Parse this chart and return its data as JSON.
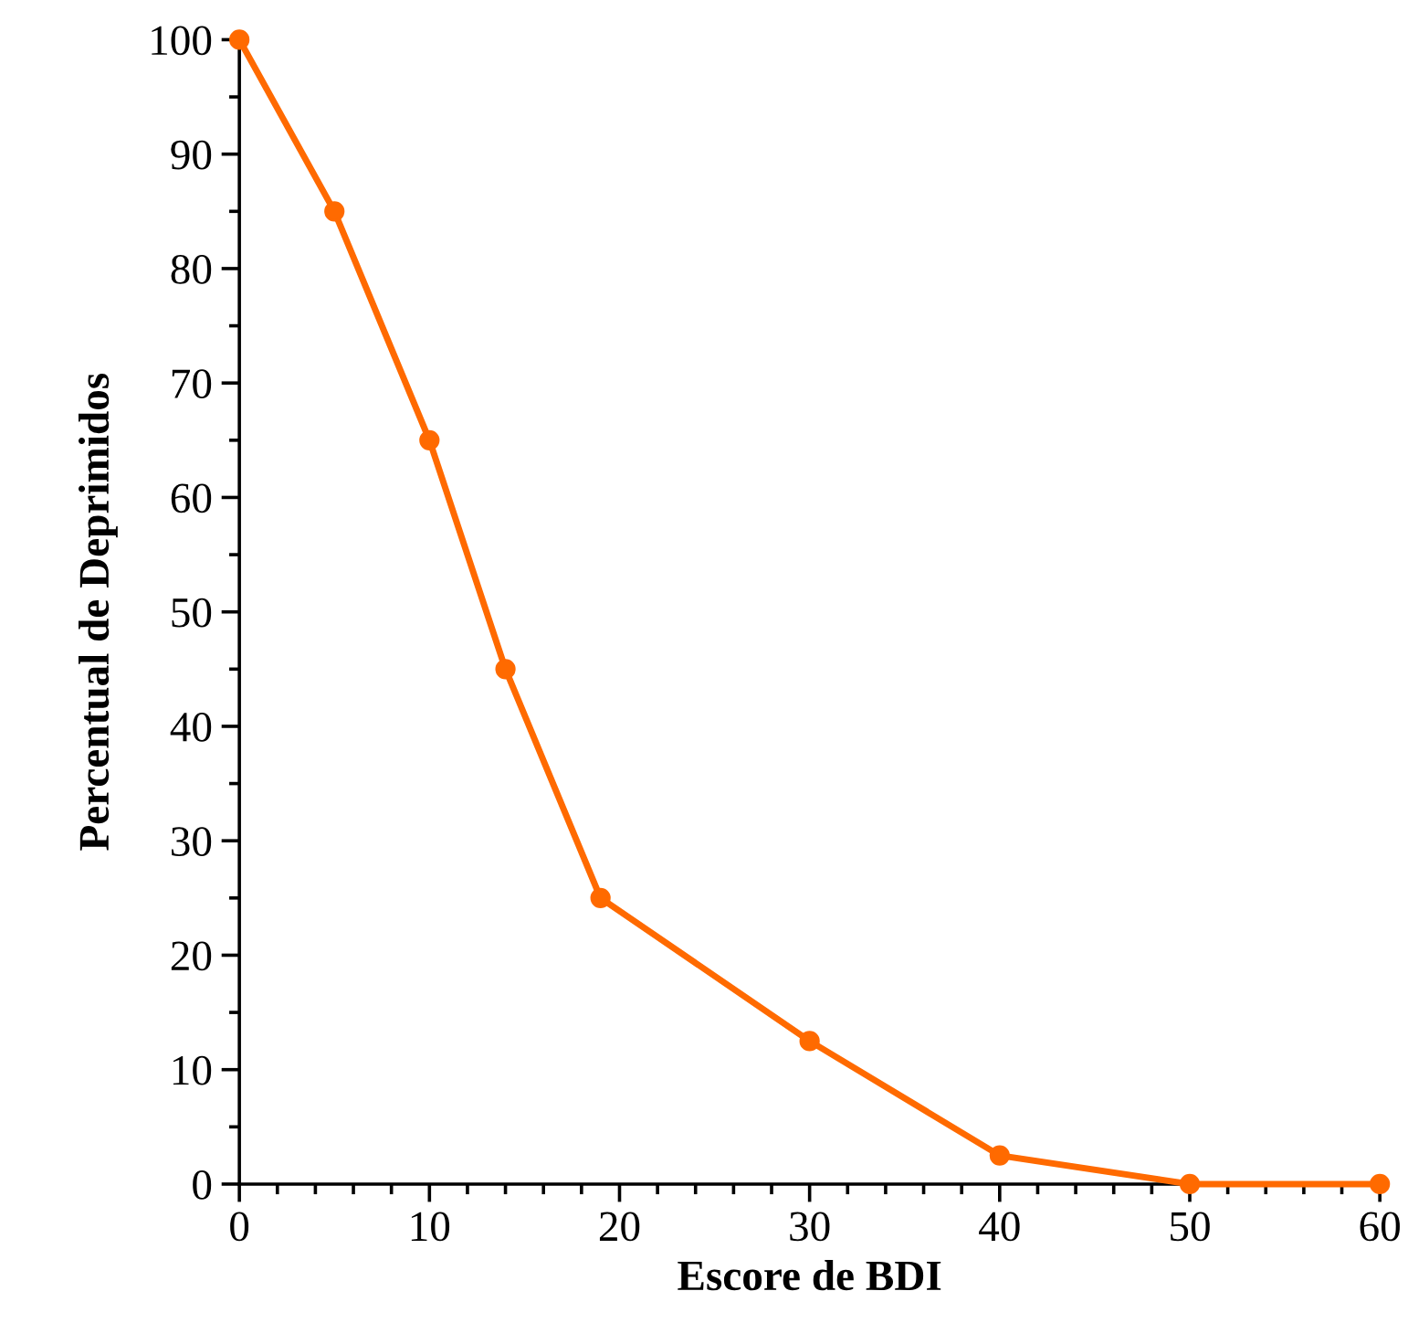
{
  "chart_data": {
    "type": "line",
    "xlabel": "Escore de BDI",
    "ylabel": "Percentual de Deprimidos",
    "x": [
      0,
      5,
      10,
      14,
      19,
      30,
      40,
      50,
      60
    ],
    "series": [
      {
        "color": "#ff6a00",
        "values": [
          100,
          85,
          65,
          45,
          25,
          12.5,
          2.5,
          0,
          0
        ]
      }
    ],
    "xlim": [
      0,
      60
    ],
    "ylim": [
      0,
      100
    ],
    "xticks": [
      0,
      10,
      20,
      30,
      40,
      50,
      60
    ],
    "yticks": [
      0,
      10,
      20,
      30,
      40,
      50,
      60,
      70,
      80,
      90,
      100
    ],
    "marker": "circle",
    "line_style": "solid",
    "grid": false,
    "legend": false
  }
}
